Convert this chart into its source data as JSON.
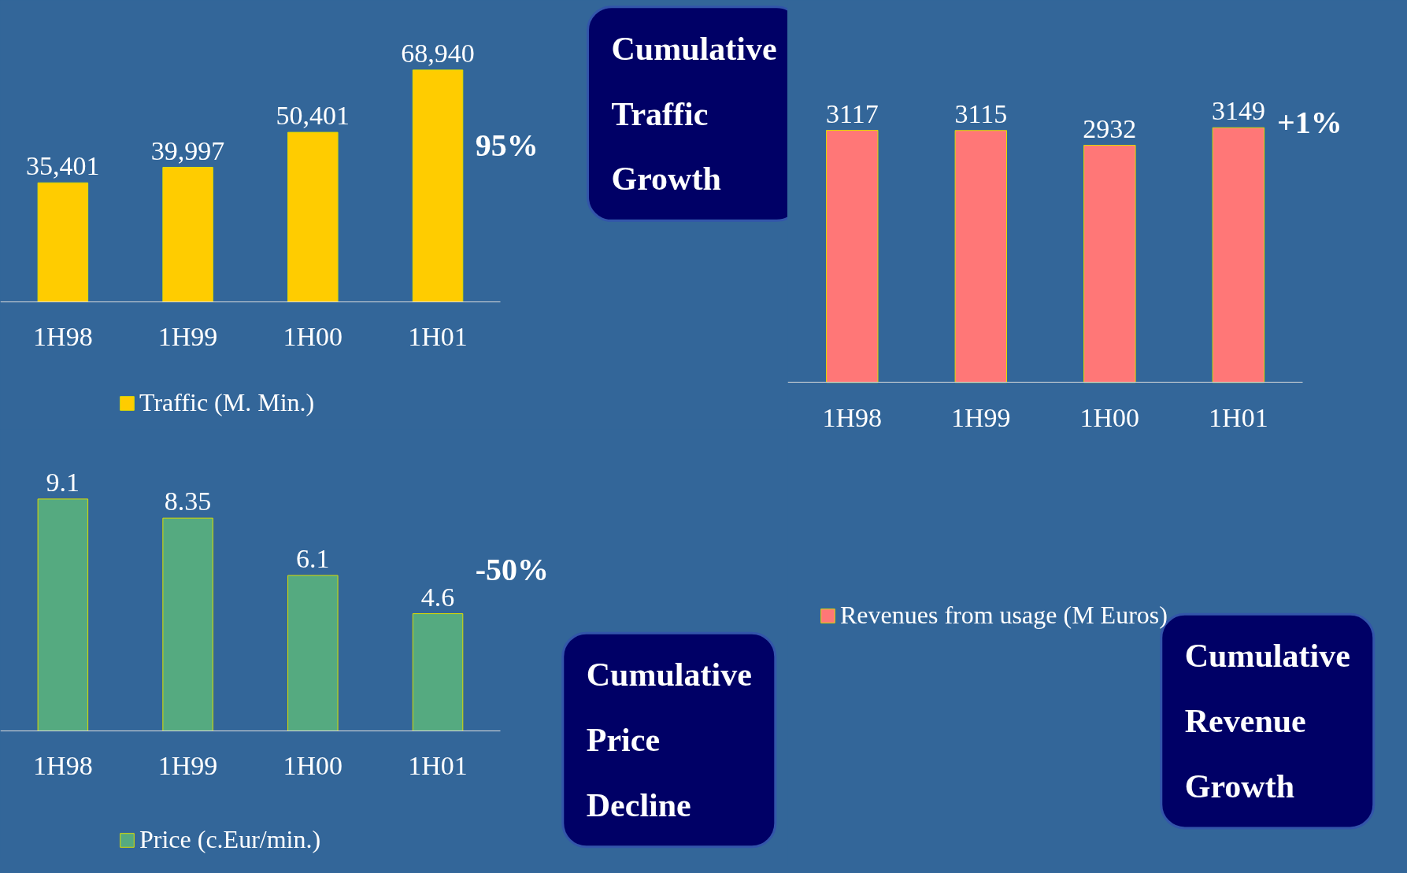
{
  "chart_data": [
    {
      "type": "bar",
      "categories": [
        "1H98",
        "1H99",
        "1H00",
        "1H01"
      ],
      "series": [
        {
          "name": "Traffic (M. Min.)",
          "color": "#ffcc00",
          "values": [
            35401,
            39997,
            50401,
            68940
          ],
          "value_labels": [
            "35,401",
            "39,997",
            "50,401",
            "68,940"
          ]
        }
      ],
      "legend": "bottom",
      "annotations": [
        "95%",
        "Cumulative Traffic Growth"
      ]
    },
    {
      "type": "bar",
      "categories": [
        "1H98",
        "1H99",
        "1H00",
        "1H01"
      ],
      "series": [
        {
          "name": "Revenues from usage (M Euros)",
          "color": "#ff7777",
          "values": [
            3117,
            3115,
            2932,
            3149
          ],
          "value_labels": [
            "3117",
            "3115",
            "2932",
            "3149"
          ]
        }
      ],
      "legend": "bottom",
      "annotations": [
        "+1%",
        "Cumulative Revenue Growth"
      ]
    },
    {
      "type": "bar",
      "categories": [
        "1H98",
        "1H99",
        "1H00",
        "1H01"
      ],
      "series": [
        {
          "name": "Price (c.Eur/min.)",
          "color": "#55aa80",
          "values": [
            9.1,
            8.35,
            6.1,
            4.6
          ],
          "value_labels": [
            "9.1",
            "8.35",
            "6.1",
            "4.6"
          ]
        }
      ],
      "legend": "bottom",
      "annotations": [
        "-50%",
        "Cumulative Price Decline"
      ]
    }
  ]
}
